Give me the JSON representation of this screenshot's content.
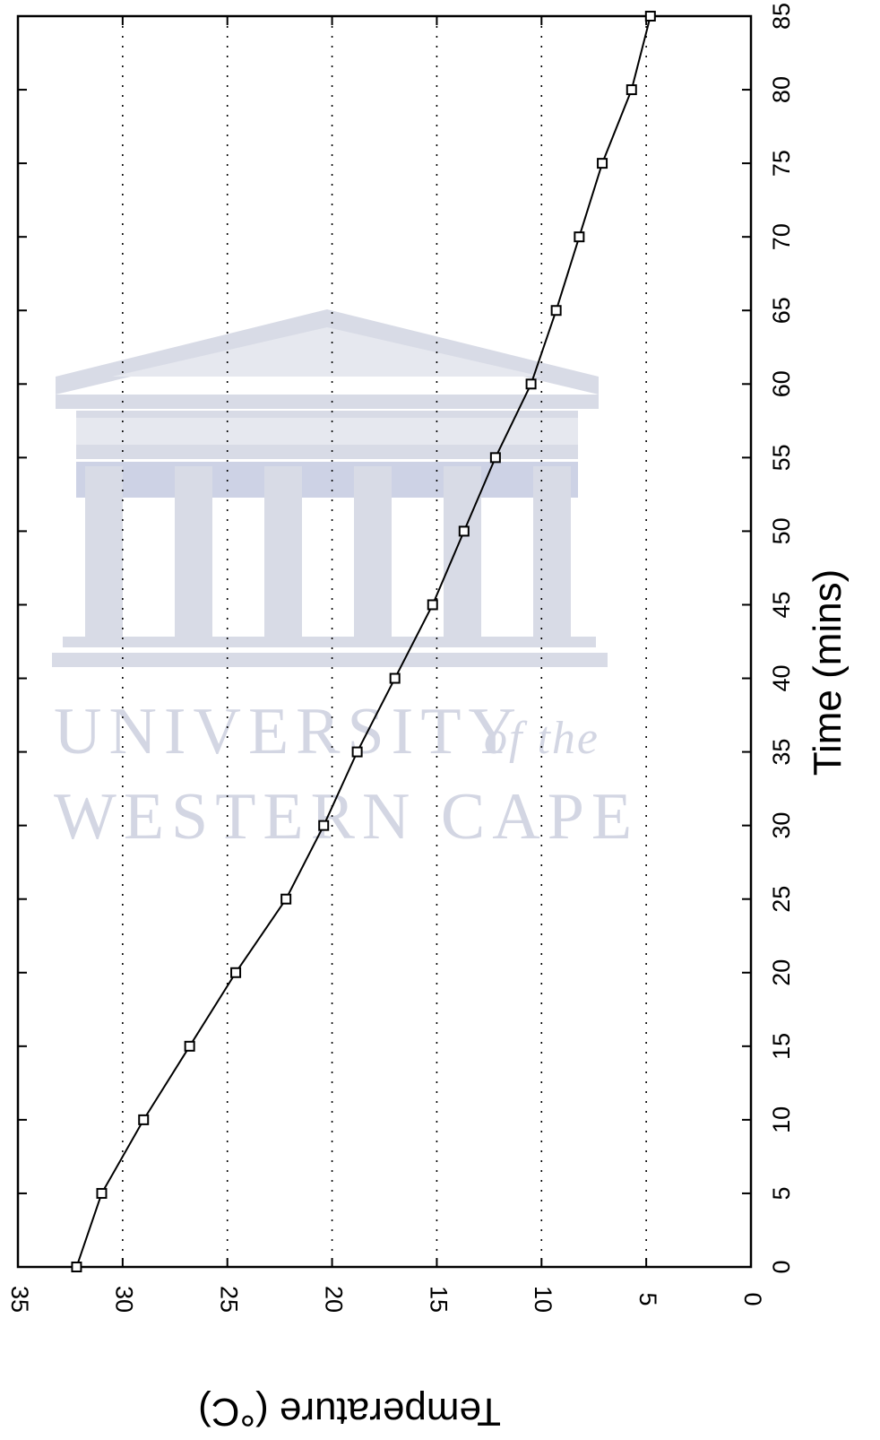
{
  "chart_data": {
    "type": "line",
    "orientation": "rotated 90 degrees clockwise",
    "title": "",
    "xlabel": "Time (mins)",
    "ylabel": "Temperature (°C)",
    "xlim": [
      0,
      85
    ],
    "ylim": [
      0,
      35
    ],
    "x_ticks": [
      0,
      5,
      10,
      15,
      20,
      25,
      30,
      35,
      40,
      45,
      50,
      55,
      60,
      65,
      70,
      75,
      80,
      85
    ],
    "y_ticks": [
      0,
      5,
      10,
      15,
      20,
      25,
      30,
      35
    ],
    "grid": "dotted, temperature axis only",
    "marker": "open square",
    "series": [
      {
        "x": [
          0,
          5,
          10,
          15,
          20,
          25,
          30,
          35,
          40,
          45,
          50,
          55,
          60,
          65,
          70,
          75,
          80,
          85
        ],
        "y": [
          32.2,
          31.0,
          29.0,
          26.8,
          24.6,
          22.2,
          20.4,
          18.8,
          17.0,
          15.2,
          13.7,
          12.2,
          10.5,
          9.3,
          8.2,
          7.1,
          5.7,
          4.8
        ]
      }
    ],
    "colors": {
      "line": "#000000",
      "grid": "#000000",
      "watermark": "#d3d6e3"
    }
  },
  "watermark": {
    "line1": "UNIVERSITY",
    "line1_suffix": "of the",
    "line2": "WESTERN CAPE"
  }
}
